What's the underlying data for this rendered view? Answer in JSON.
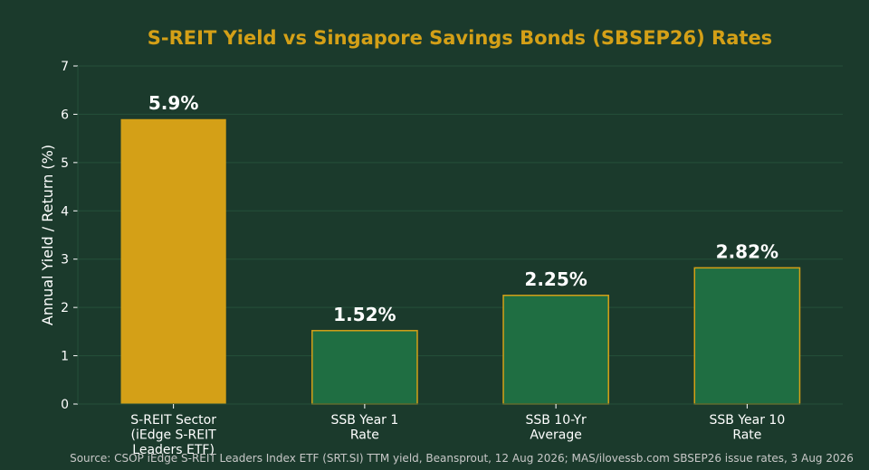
{
  "chart_data": {
    "type": "bar",
    "title": "S-REIT Yield vs Singapore Savings Bonds (SBSEP26) Rates",
    "xlabel": "",
    "ylabel": "Annual Yield / Return (%)",
    "ylim": [
      0,
      7
    ],
    "yticks": [
      "0",
      "1",
      "2",
      "3",
      "4",
      "5",
      "6",
      "7"
    ],
    "grid": true,
    "categories": [
      [
        "S-REIT Sector",
        "(iEdge S-REIT",
        "Leaders ETF)"
      ],
      [
        "SSB Year 1",
        "Rate"
      ],
      [
        "SSB 10-Yr",
        "Average"
      ],
      [
        "SSB Year 10",
        "Rate"
      ]
    ],
    "values": [
      5.9,
      1.52,
      2.25,
      2.82
    ],
    "data_labels": [
      "5.9%",
      "1.52%",
      "2.25%",
      "2.82%"
    ],
    "source": "Source: CSOP iEdge S-REIT Leaders Index ETF (SRT.SI) TTM yield, Beansprout, 12 Aug 2026; MAS/ilovessb.com SBSEP26 issue rates, 3 Aug 2026"
  },
  "colors": {
    "background": "#1b3a2c",
    "reit_bar": "#d4a017",
    "ssb_bar": "#1f6e42",
    "ssb_bar_edge": "#d4a017",
    "title": "#d4a017",
    "grid": "#25503a",
    "text": "#ffffff"
  }
}
